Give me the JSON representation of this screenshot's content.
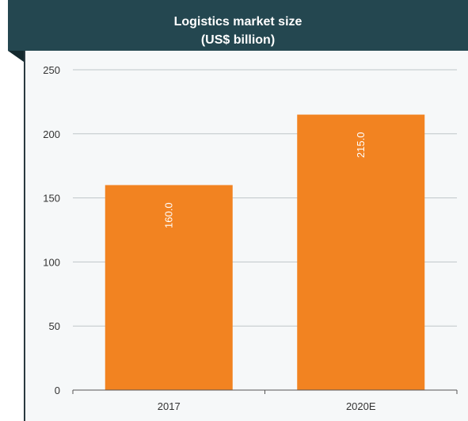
{
  "chart_data": {
    "type": "bar",
    "title": "Logistics market size",
    "subtitle": "(US$ billion)",
    "categories": [
      "2017",
      "2020E"
    ],
    "values": [
      160.0,
      215.0
    ],
    "value_labels": [
      "160.0",
      "215.0"
    ],
    "ylim": [
      0,
      250
    ],
    "yticks": [
      "0",
      "50",
      "100",
      "150",
      "200",
      "250"
    ],
    "grid": true,
    "bar_color": "#f28321",
    "header_color": "#244750"
  }
}
